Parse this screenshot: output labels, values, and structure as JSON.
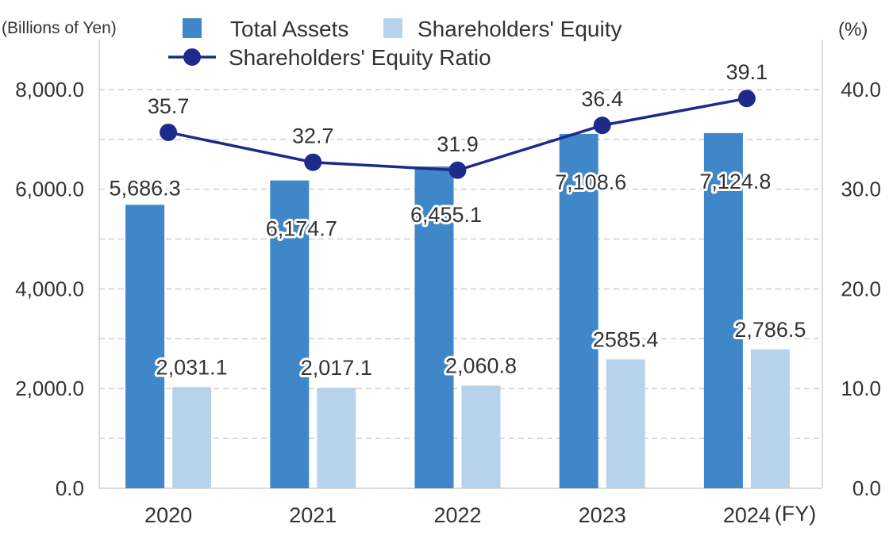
{
  "chart_data": {
    "type": "bar",
    "categories": [
      "2020",
      "2021",
      "2022",
      "2023",
      "2024"
    ],
    "x_unit": "(FY)",
    "y_left": {
      "label": "(Billions of Yen)",
      "range": [
        0,
        9000
      ],
      "ticks": [
        0,
        2000,
        4000,
        6000,
        8000
      ],
      "tick_labels": [
        "0.0",
        "2,000.0",
        "4,000.0",
        "6,000.0",
        "8,000.0"
      ]
    },
    "y_right": {
      "label": "(%)",
      "range": [
        0,
        45
      ],
      "ticks": [
        0,
        10,
        20,
        30,
        40
      ],
      "tick_labels": [
        "0.0",
        "10.0",
        "20.0",
        "30.0",
        "40.0"
      ]
    },
    "series": [
      {
        "name": "Total Assets",
        "kind": "bar",
        "axis": "left",
        "color": "#3f87c8",
        "values": [
          5686.3,
          6174.7,
          6455.1,
          7108.6,
          7124.8
        ],
        "labels": [
          "5,686.3",
          "6,174.7",
          "6,455.1",
          "7,108.6",
          "7,124.8"
        ]
      },
      {
        "name": "Shareholders' Equity",
        "kind": "bar",
        "axis": "left",
        "color": "#b7d3ec",
        "values": [
          2031.1,
          2017.1,
          2060.8,
          2585.4,
          2786.5
        ],
        "labels": [
          "2,031.1",
          "2,017.1",
          "2,060.8",
          "2585.4",
          "2,786.5"
        ]
      },
      {
        "name": "Shareholders' Equity Ratio",
        "kind": "line",
        "axis": "right",
        "color": "#1e2a8a",
        "values": [
          35.7,
          32.7,
          31.9,
          36.4,
          39.1
        ],
        "labels": [
          "35.7",
          "32.7",
          "31.9",
          "36.4",
          "39.1"
        ]
      }
    ],
    "grid": true
  }
}
